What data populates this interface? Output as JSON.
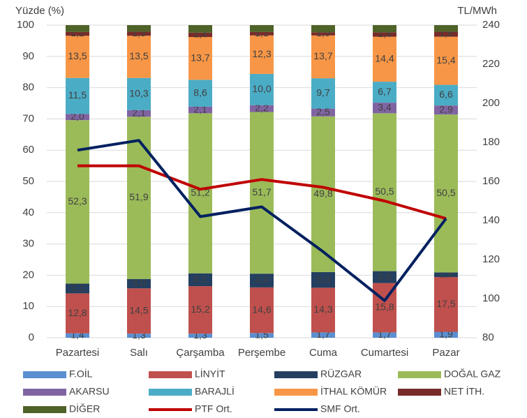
{
  "chart_data": {
    "type": "bar",
    "stacked": true,
    "y_label": "Yüzde (%)",
    "y2_label": "TL/MWh",
    "categories": [
      "Pazartesi",
      "Salı",
      "Çarşamba",
      "Perşembe",
      "Cuma",
      "Cumartesi",
      "Pazar"
    ],
    "ylim": [
      0,
      100
    ],
    "yticks": [
      0,
      10,
      20,
      30,
      40,
      50,
      60,
      70,
      80,
      90,
      100
    ],
    "y2lim": [
      80,
      240
    ],
    "y2ticks": [
      80,
      100,
      120,
      140,
      160,
      180,
      200,
      220,
      240
    ],
    "grid": true,
    "legend": "bottom",
    "series": [
      {
        "name": "F.OİL",
        "color": "#5b8fd0",
        "values": [
          1.4,
          1.3,
          1.3,
          1.5,
          1.7,
          1.7,
          1.9
        ],
        "value_labels": [
          "1,4",
          "1,3",
          "1,3",
          "1,5",
          "1,7",
          "1,7",
          "1,9"
        ]
      },
      {
        "name": "LİNYİT",
        "color": "#c0504d",
        "values": [
          12.8,
          14.5,
          15.2,
          14.6,
          14.3,
          15.8,
          17.5
        ],
        "value_labels": [
          "12,8",
          "14,5",
          "15,2",
          "14,6",
          "14,3",
          "15,8",
          "17,5"
        ]
      },
      {
        "name": "RÜZGAR",
        "color": "#243f60",
        "values": [
          3.1,
          3.0,
          4.1,
          4.4,
          5.0,
          3.8,
          1.5
        ],
        "value_labels": [
          "3,1",
          "3,0",
          "4,1",
          "4,4",
          "5,0",
          "3,8",
          "1,5"
        ]
      },
      {
        "name": "DOĞAL GAZ",
        "color": "#9bbb59",
        "values": [
          52.3,
          51.9,
          51.2,
          51.7,
          49.8,
          50.5,
          50.5
        ],
        "value_labels": [
          "52,3",
          "51,9",
          "51,2",
          "51,7",
          "49,8",
          "50,5",
          "50,5"
        ]
      },
      {
        "name": "AKARSU",
        "color": "#8064a2",
        "values": [
          2.0,
          2.1,
          2.1,
          2.2,
          2.5,
          3.4,
          2.9
        ],
        "value_labels": [
          "2,0",
          "2,1",
          "2,1",
          "2,2",
          "2,5",
          "3,4",
          "2,9"
        ]
      },
      {
        "name": "BARAJLİ",
        "color": "#4bacc6",
        "values": [
          11.5,
          10.3,
          8.6,
          10.0,
          9.7,
          6.7,
          6.6
        ],
        "value_labels": [
          "11,5",
          "10,3",
          "8,6",
          "10,0",
          "9,7",
          "6,7",
          "6,6"
        ]
      },
      {
        "name": "İTHAL KÖMÜR",
        "color": "#f79646",
        "values": [
          13.5,
          13.5,
          13.7,
          12.3,
          13.7,
          14.4,
          15.4
        ],
        "value_labels": [
          "13,5",
          "13,5",
          "13,7",
          "12,3",
          "13,7",
          "14,4",
          "15,4"
        ]
      },
      {
        "name": "NET İTH.",
        "color": "#772c2a",
        "values": [
          1.2,
          1.3,
          1.4,
          1.1,
          1.0,
          1.4,
          1.6
        ],
        "value_labels": [
          "1,2",
          "1,3",
          "1,4",
          "1,1",
          "1,0",
          "1,4",
          "1,6"
        ]
      },
      {
        "name": "DİĞER",
        "color": "#4f6228",
        "values": [
          2.2,
          2.1,
          2.4,
          2.2,
          2.3,
          2.3,
          2.1
        ]
      },
      {
        "name": "PTF Ort.",
        "color": "#c00000",
        "axis": "y2",
        "values": [
          168,
          168,
          156,
          161,
          157,
          150,
          141
        ]
      },
      {
        "name": "SMF Ort.",
        "color": "#002060",
        "axis": "y2",
        "values": [
          176,
          181,
          142,
          147,
          124,
          99,
          141
        ]
      }
    ]
  }
}
